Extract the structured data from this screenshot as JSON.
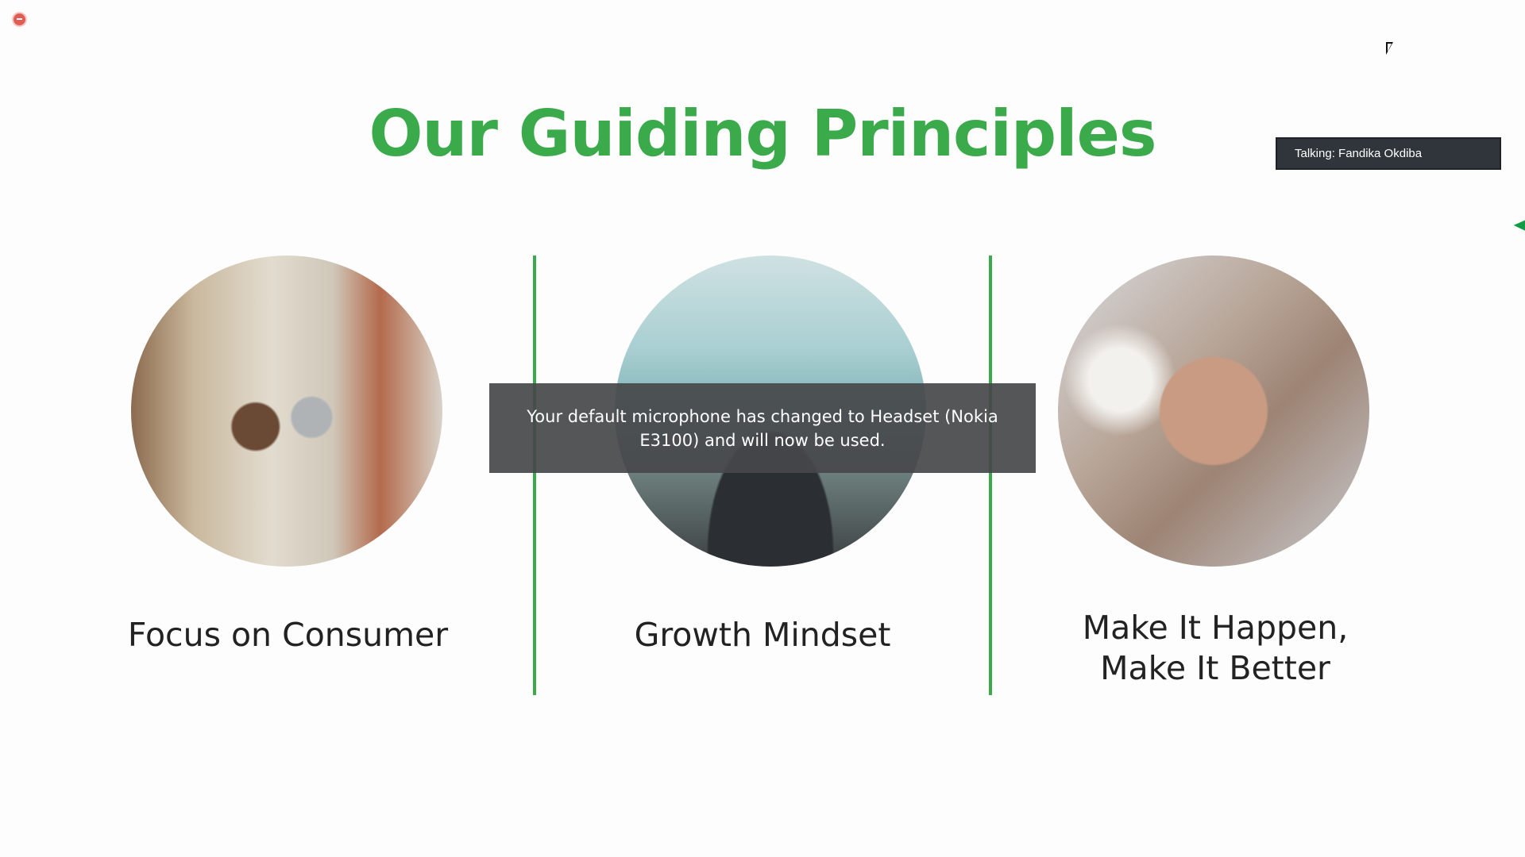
{
  "slide": {
    "title": "Our Guiding Principles",
    "principles": [
      {
        "label": "Focus on Consumer",
        "image_icon": "store-consumers-photo"
      },
      {
        "label": "Growth Mindset",
        "image_icon": "classroom-raised-hands-photo"
      },
      {
        "label_line1": "Make It Happen,",
        "label_line2": "Make It Better",
        "image_icon": "team-hands-together-photo"
      }
    ],
    "accent_color": "#3aaa4b",
    "corner_color": "#119c45"
  },
  "notification": {
    "message": "Your default microphone has changed to Headset (Nokia E3100) and will now be used."
  },
  "talking_indicator": {
    "text": "Talking: Fandika Okdiba"
  },
  "recording_indicator": {
    "icon": "record-icon",
    "color": "#e25b55"
  }
}
